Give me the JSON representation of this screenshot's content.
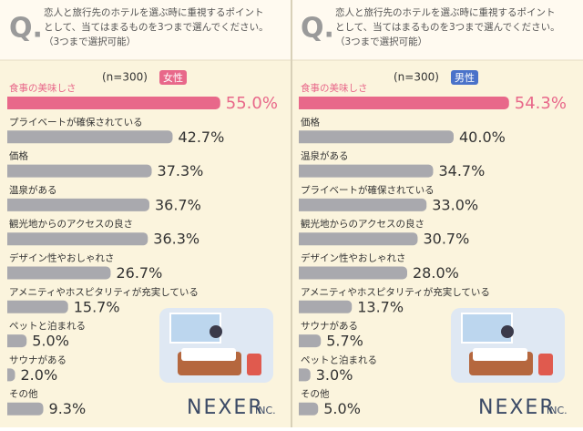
{
  "chart_data": [
    {
      "type": "bar",
      "question": [
        "恋人と旅行先のホテルを選ぶ時に重視するポイント",
        "として、当てはまるものを3つまで選んでください。",
        "（3つまで選択可能）"
      ],
      "sample": "(n=300)",
      "group": "女性",
      "group_color": "#e8688a",
      "categories": [
        "食事の美味しさ",
        "プライベートが確保されている",
        "価格",
        "温泉がある",
        "観光地からのアクセスの良さ",
        "デザイン性やおしゃれさ",
        "アメニティやホスピタリティが充実している",
        "ペットと泊まれる",
        "サウナがある",
        "その他"
      ],
      "values": [
        55.0,
        42.7,
        37.3,
        36.7,
        36.3,
        26.7,
        15.7,
        5.0,
        2.0,
        9.3
      ],
      "value_labels": [
        "55.0%",
        "42.7%",
        "37.3%",
        "36.7%",
        "36.3%",
        "26.7%",
        "15.7%",
        "5.0%",
        "2.0%",
        "9.3%"
      ],
      "color": "#a9a9ae",
      "highlight_color": "#e8688a",
      "logo": "NEXER",
      "logo_suffix": "INC."
    },
    {
      "type": "bar",
      "question": [
        "恋人と旅行先のホテルを選ぶ時に重視するポイント",
        "として、当てはまるものを3つまで選んでください。",
        "（3つまで選択可能）"
      ],
      "sample": "(n=300)",
      "group": "男性",
      "group_color": "#4a72c9",
      "categories": [
        "食事の美味しさ",
        "価格",
        "温泉がある",
        "プライベートが確保されている",
        "観光地からのアクセスの良さ",
        "デザイン性やおしゃれさ",
        "アメニティやホスピタリティが充実している",
        "サウナがある",
        "ペットと泊まれる",
        "その他"
      ],
      "values": [
        54.3,
        40.0,
        34.7,
        33.0,
        30.7,
        28.0,
        13.7,
        5.7,
        3.0,
        5.0
      ],
      "value_labels": [
        "54.3%",
        "40.0%",
        "34.7%",
        "33.0%",
        "30.7%",
        "28.0%",
        "13.7%",
        "5.7%",
        "3.0%",
        "5.0%"
      ],
      "color": "#a9a9ae",
      "highlight_color": "#e8688a",
      "logo": "NEXER",
      "logo_suffix": "INC."
    }
  ]
}
